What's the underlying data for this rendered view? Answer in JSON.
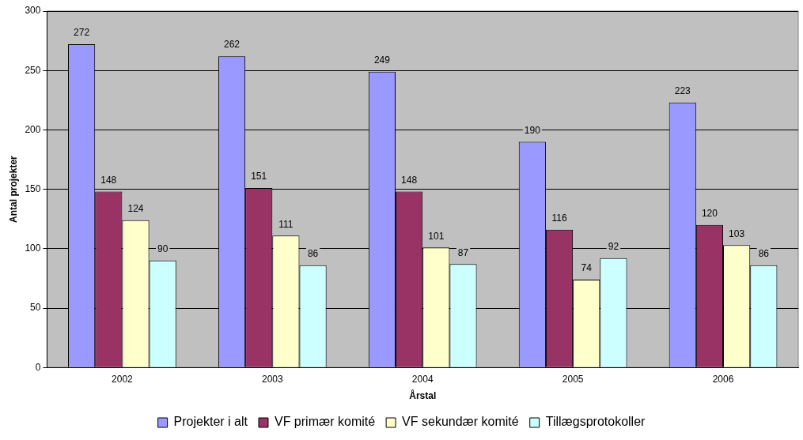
{
  "chart_data": {
    "type": "bar",
    "xlabel": "Årstal",
    "ylabel": "Antal projekter",
    "categories": [
      "2002",
      "2003",
      "2004",
      "2005",
      "2006"
    ],
    "series": [
      {
        "name": "Projekter i alt",
        "color": "#9999ff",
        "values": [
          272,
          262,
          249,
          190,
          223
        ]
      },
      {
        "name": "VF primær komité",
        "color": "#993366",
        "values": [
          148,
          151,
          148,
          116,
          120
        ]
      },
      {
        "name": "VF sekundær komité",
        "color": "#ffffcc",
        "values": [
          124,
          111,
          101,
          74,
          103
        ]
      },
      {
        "name": "Tillægsprotokoller",
        "color": "#ccffff",
        "values": [
          90,
          86,
          87,
          92,
          86
        ]
      }
    ],
    "ylim": [
      0,
      300
    ],
    "yticks": [
      0,
      50,
      100,
      150,
      200,
      250,
      300
    ],
    "grid": "y",
    "legend": "bottom",
    "data_labels": true
  }
}
